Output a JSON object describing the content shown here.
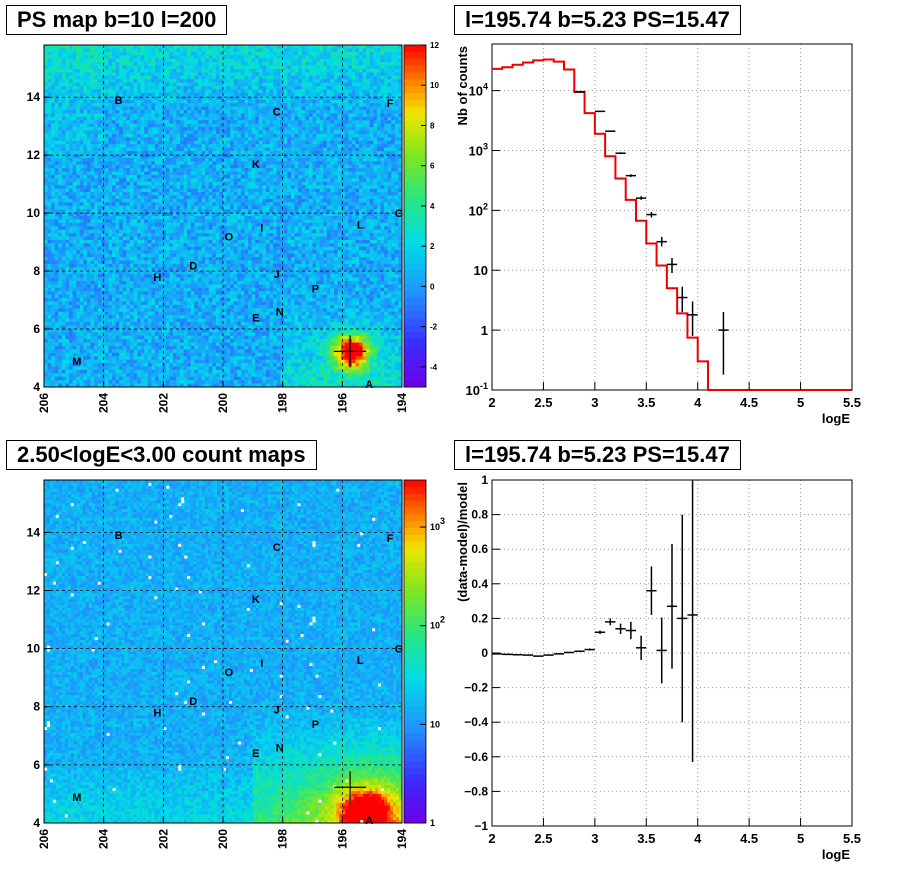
{
  "titles": {
    "map_top": "PS map b=10 l=200",
    "spectrum": "l=195.74 b=5.23 PS=15.47",
    "map_bottom": "2.50<logE<3.00 count maps",
    "residual": "l=195.74 b=5.23 PS=15.47"
  },
  "chart_data": [
    {
      "type": "heatmap",
      "title": "PS map b=10 l=200",
      "xlabel": "",
      "ylabel": "",
      "xlim": [
        206,
        194
      ],
      "ylim": [
        4,
        15.8
      ],
      "x_ticks": [
        "206",
        "204",
        "202",
        "200",
        "198",
        "196",
        "194"
      ],
      "y_ticks": [
        "4",
        "6",
        "8",
        "10",
        "12",
        "14"
      ],
      "colorbar": {
        "scale": "linear",
        "range": [
          -5,
          12
        ],
        "ticks": [
          "12",
          "10",
          "8",
          "6",
          "4",
          "2",
          "0",
          "-2",
          "-4"
        ]
      },
      "marker": {
        "l": 195.74,
        "b": 5.23
      },
      "sources": [
        {
          "label": "A",
          "l": 195.1,
          "b": 4.1
        },
        {
          "label": "B",
          "l": 203.5,
          "b": 13.9
        },
        {
          "label": "C",
          "l": 198.2,
          "b": 13.5
        },
        {
          "label": "D",
          "l": 201.0,
          "b": 8.2
        },
        {
          "label": "E",
          "l": 198.9,
          "b": 6.4
        },
        {
          "label": "F",
          "l": 194.4,
          "b": 13.8
        },
        {
          "label": "G",
          "l": 194.1,
          "b": 10.0
        },
        {
          "label": "H",
          "l": 202.2,
          "b": 7.8
        },
        {
          "label": "I",
          "l": 198.7,
          "b": 9.5
        },
        {
          "label": "J",
          "l": 198.2,
          "b": 7.9
        },
        {
          "label": "K",
          "l": 198.9,
          "b": 11.7
        },
        {
          "label": "L",
          "l": 195.4,
          "b": 9.6
        },
        {
          "label": "M",
          "l": 204.9,
          "b": 4.9
        },
        {
          "label": "N",
          "l": 198.1,
          "b": 6.6
        },
        {
          "label": "O",
          "l": 199.8,
          "b": 9.2
        },
        {
          "label": "P",
          "l": 196.9,
          "b": 7.4
        }
      ],
      "hotspots": [
        {
          "l": 195.7,
          "b": 5.2,
          "peak": 12
        }
      ]
    },
    {
      "type": "line",
      "title": "l=195.74 b=5.23 PS=15.47",
      "xlabel": "logE",
      "ylabel": "Nb of counts",
      "xlim": [
        2,
        5.5
      ],
      "ylim": [
        0.1,
        60000
      ],
      "yscale": "log",
      "x_ticks": [
        "2",
        "2.5",
        "3",
        "3.5",
        "4",
        "4.5",
        "5",
        "5.5"
      ],
      "y_ticks": [
        "10^{-1}",
        "1",
        "10",
        "10^{2}",
        "10^{3}",
        "10^{4}"
      ],
      "grid": true,
      "series": [
        {
          "style": "step-red",
          "bin_edges": [
            2.0,
            2.1,
            2.2,
            2.3,
            2.4,
            2.5,
            2.6,
            2.7,
            2.8,
            2.9,
            3.0,
            3.1,
            3.2,
            3.3,
            3.4,
            3.5,
            3.6,
            3.7,
            3.8,
            3.9,
            4.0,
            4.1,
            4.2,
            4.3,
            4.4,
            4.5,
            4.6,
            4.7,
            4.8,
            4.9,
            5.0,
            5.1,
            5.2,
            5.3,
            5.4,
            5.5
          ],
          "values": [
            23000,
            24500,
            27000,
            29500,
            32000,
            33000,
            30500,
            22500,
            9500,
            4200,
            1900,
            800,
            340,
            150,
            67,
            28,
            12,
            5,
            1.9,
            0.75,
            0.3,
            0.1,
            0.1,
            0.1,
            0.1,
            0.1,
            0.1,
            0.1,
            0.1,
            0.1,
            0.1,
            0.1,
            0.1,
            0.1,
            0.1
          ]
        },
        {
          "style": "errorbar-black",
          "points": [
            {
              "x": 2.85,
              "y": 9500,
              "lo": 9300,
              "hi": 9700
            },
            {
              "x": 3.05,
              "y": 4500,
              "lo": 4400,
              "hi": 4600
            },
            {
              "x": 3.15,
              "y": 2100,
              "lo": 2050,
              "hi": 2150
            },
            {
              "x": 3.25,
              "y": 900,
              "lo": 870,
              "hi": 930
            },
            {
              "x": 3.35,
              "y": 380,
              "lo": 360,
              "hi": 400
            },
            {
              "x": 3.45,
              "y": 160,
              "lo": 150,
              "hi": 172
            },
            {
              "x": 3.55,
              "y": 85,
              "lo": 76,
              "hi": 94
            },
            {
              "x": 3.65,
              "y": 30,
              "lo": 25,
              "hi": 36
            },
            {
              "x": 3.75,
              "y": 12.5,
              "lo": 9,
              "hi": 16
            },
            {
              "x": 3.85,
              "y": 3.5,
              "lo": 2,
              "hi": 5.3
            },
            {
              "x": 3.95,
              "y": 1.8,
              "lo": 0.8,
              "hi": 3
            },
            {
              "x": 4.25,
              "y": 1,
              "lo": 0.18,
              "hi": 2
            }
          ]
        }
      ]
    },
    {
      "type": "heatmap",
      "title": "2.50<logE<3.00 count maps",
      "xlabel": "",
      "ylabel": "",
      "xlim": [
        206,
        194
      ],
      "ylim": [
        4,
        15.8
      ],
      "x_ticks": [
        "206",
        "204",
        "202",
        "200",
        "198",
        "196",
        "194"
      ],
      "y_ticks": [
        "4",
        "6",
        "8",
        "10",
        "12",
        "14"
      ],
      "colorbar": {
        "scale": "log",
        "range": [
          1,
          3000
        ],
        "ticks": [
          "10^{3}",
          "10^{2}",
          "10",
          "1"
        ]
      },
      "marker": {
        "l": 195.74,
        "b": 5.23
      },
      "hotspots": [
        {
          "l": 195.2,
          "b": 4.3,
          "peak": 3000
        }
      ]
    },
    {
      "type": "scatter",
      "title": "l=195.74 b=5.23 PS=15.47",
      "xlabel": "logE",
      "ylabel": "(data-model)/model",
      "xlim": [
        2,
        5.5
      ],
      "ylim": [
        -1,
        1
      ],
      "x_ticks": [
        "2",
        "2.5",
        "3",
        "3.5",
        "4",
        "4.5",
        "5",
        "5.5"
      ],
      "y_ticks": [
        "-1",
        "-0.8",
        "-0.6",
        "-0.4",
        "-0.2",
        "0",
        "0.2",
        "0.4",
        "0.6",
        "0.8",
        "1"
      ],
      "grid": true,
      "points": [
        {
          "x": 2.05,
          "y": -0.005,
          "err": 0.003
        },
        {
          "x": 2.15,
          "y": -0.008,
          "err": 0.003
        },
        {
          "x": 2.25,
          "y": -0.01,
          "err": 0.003
        },
        {
          "x": 2.35,
          "y": -0.012,
          "err": 0.003
        },
        {
          "x": 2.45,
          "y": -0.018,
          "err": 0.003
        },
        {
          "x": 2.55,
          "y": -0.012,
          "err": 0.003
        },
        {
          "x": 2.65,
          "y": -0.005,
          "err": 0.003
        },
        {
          "x": 2.75,
          "y": 0.003,
          "err": 0.003
        },
        {
          "x": 2.85,
          "y": 0.01,
          "err": 0.004
        },
        {
          "x": 2.95,
          "y": 0.02,
          "err": 0.006
        },
        {
          "x": 3.05,
          "y": 0.12,
          "err": 0.01
        },
        {
          "x": 3.15,
          "y": 0.18,
          "err": 0.02
        },
        {
          "x": 3.25,
          "y": 0.14,
          "err": 0.03
        },
        {
          "x": 3.35,
          "y": 0.13,
          "err": 0.05
        },
        {
          "x": 3.45,
          "y": 0.03,
          "err": 0.07
        },
        {
          "x": 3.55,
          "y": 0.36,
          "err": 0.14
        },
        {
          "x": 3.65,
          "y": 0.015,
          "err": 0.19
        },
        {
          "x": 3.75,
          "y": 0.27,
          "err": 0.36
        },
        {
          "x": 3.85,
          "y": 0.2,
          "err": 0.6
        },
        {
          "x": 3.95,
          "y": 0.22,
          "err": 0.85
        }
      ]
    }
  ]
}
